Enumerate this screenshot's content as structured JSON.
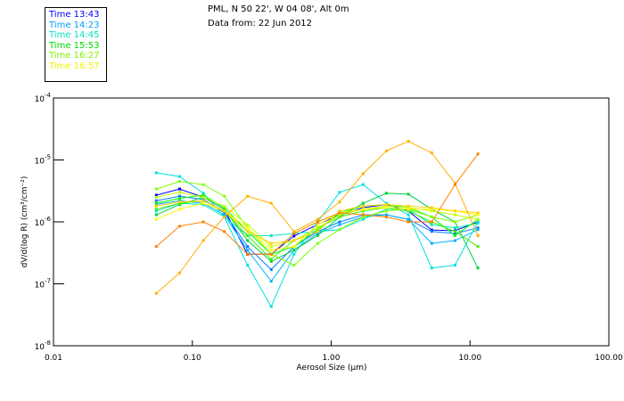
{
  "header": {
    "location": "PML, N 50 22', W 04 08', Alt 0m",
    "date": "Data from: 22 Jun 2012"
  },
  "chart_data": {
    "type": "line",
    "xlabel": "Aerosol Size (µm)",
    "ylabel": "dV/d(log R) (cm³/cm⁻²)",
    "xscale": "log",
    "yscale": "log",
    "xlim": [
      0.01,
      100
    ],
    "ylim": [
      1e-08,
      0.0001
    ],
    "xticks": [
      0.01,
      0.1,
      1,
      10,
      100
    ],
    "xtick_labels": [
      "0.01",
      "0.10",
      "1.00",
      "10.00",
      "100.00"
    ],
    "yticks": [
      1e-08,
      1e-07,
      1e-06,
      1e-05,
      0.0001
    ],
    "ytick_labels": [
      {
        "base": "10",
        "exp": "-8"
      },
      {
        "base": "10",
        "exp": "-7"
      },
      {
        "base": "10",
        "exp": "-6"
      },
      {
        "base": "10",
        "exp": "-5"
      },
      {
        "base": "10",
        "exp": "-4"
      }
    ],
    "legend_position": "top-left",
    "legend": [
      {
        "label": "Time 13:43",
        "color": "#0000ff"
      },
      {
        "label": "Time 14:23",
        "color": "#00a0ff"
      },
      {
        "label": "Time 14:45",
        "color": "#00e0c0"
      },
      {
        "label": "Time 15:53",
        "color": "#00d800"
      },
      {
        "label": "Time 16:27",
        "color": "#80f000"
      },
      {
        "label": "Time 16:57",
        "color": "#f0f000"
      }
    ],
    "x": [
      0.055,
      0.081,
      0.12,
      0.17,
      0.25,
      0.37,
      0.54,
      0.8,
      1.15,
      1.7,
      2.5,
      3.6,
      5.3,
      7.8,
      11.4
    ],
    "series": [
      {
        "color": "#0000ff",
        "values": [
          2.7e-06,
          3.4e-06,
          2.5e-06,
          1.6e-06,
          3e-07,
          3e-07,
          5.9e-07,
          9.1e-07,
          1.3e-06,
          1.7e-06,
          1.9e-06,
          1.5e-06,
          7.4e-07,
          7.2e-07,
          1e-06
        ]
      },
      {
        "color": "#0080ff",
        "values": [
          2.2e-06,
          2.6e-06,
          2.3e-06,
          1.4e-06,
          4e-07,
          1.7e-07,
          4e-07,
          7e-07,
          1e-06,
          1.3e-06,
          1.3e-06,
          1.1e-06,
          7e-07,
          6.5e-07,
          8e-07
        ]
      },
      {
        "color": "#00b0ff",
        "values": [
          1.9e-06,
          2.2e-06,
          2e-06,
          1.3e-06,
          3.5e-07,
          1.1e-07,
          3.5e-07,
          6.5e-07,
          9e-07,
          1.2e-06,
          1.3e-06,
          1.1e-06,
          4.5e-07,
          5e-07,
          7.5e-07
        ]
      },
      {
        "color": "#00e0e0",
        "values": [
          6.2e-06,
          5.4e-06,
          2.9e-06,
          1.2e-06,
          2e-07,
          4.3e-08,
          3e-07,
          1e-06,
          3e-06,
          4e-06,
          2e-06,
          1.3e-06,
          1.8e-07,
          2e-07,
          1e-06
        ]
      },
      {
        "color": "#00e8c0",
        "values": [
          1.5e-06,
          2e-06,
          1.9e-06,
          1.2e-06,
          6e-07,
          6e-07,
          6.5e-07,
          7e-07,
          7.5e-07,
          1.1e-06,
          1.6e-06,
          1.6e-06,
          9e-07,
          8e-07,
          9.5e-07
        ]
      },
      {
        "color": "#00d040",
        "values": [
          1.3e-06,
          1.9e-06,
          2.5e-06,
          1.6e-06,
          5e-07,
          2.3e-07,
          3.5e-07,
          6e-07,
          1.2e-06,
          2e-06,
          2.9e-06,
          2.8e-06,
          1.6e-06,
          1e-06,
          1.8e-07
        ]
      },
      {
        "color": "#00ff00",
        "values": [
          2e-06,
          2.4e-06,
          2.7e-06,
          1.7e-06,
          7e-07,
          3e-07,
          4e-07,
          7.5e-07,
          1.4e-06,
          1.8e-06,
          1.9e-06,
          1.7e-06,
          1.2e-06,
          6e-07,
          1.1e-06
        ]
      },
      {
        "color": "#40f000",
        "values": [
          1.6e-06,
          2e-06,
          2.2e-06,
          1.5e-06,
          6e-07,
          2.5e-07,
          5e-07,
          8e-07,
          1.2e-06,
          1.5e-06,
          1.7e-06,
          1.5e-06,
          1e-06,
          7e-07,
          4e-07
        ]
      },
      {
        "color": "#80ff00",
        "values": [
          3.4e-06,
          4.5e-06,
          4e-06,
          2.6e-06,
          8e-07,
          3e-07,
          2e-07,
          4.5e-07,
          7.5e-07,
          1.2e-06,
          1.5e-06,
          1.6e-06,
          1.2e-06,
          1e-06,
          1.3e-06
        ]
      },
      {
        "color": "#c0ff00",
        "values": [
          2.5e-06,
          3e-06,
          2.5e-06,
          1.8e-06,
          9e-07,
          4e-07,
          5e-07,
          8e-07,
          1.3e-06,
          1.6e-06,
          1.8e-06,
          1.7e-06,
          1.5e-06,
          1.3e-06,
          1.1e-06
        ]
      },
      {
        "color": "#ffff00",
        "values": [
          1.1e-06,
          1.6e-06,
          2e-06,
          1.5e-06,
          8e-07,
          3.5e-07,
          4e-07,
          9e-07,
          1.4e-06,
          1.6e-06,
          1.7e-06,
          1.6e-06,
          1.6e-06,
          1.5e-06,
          1.3e-06
        ]
      },
      {
        "color": "#ffd000",
        "values": [
          1.8e-06,
          2.1e-06,
          2.2e-06,
          1.5e-06,
          7e-07,
          4.5e-07,
          5e-07,
          7e-07,
          1.5e-06,
          1.8e-06,
          1.9e-06,
          1.8e-06,
          1.7e-06,
          1.5e-06,
          1.4e-06
        ]
      },
      {
        "color": "#ffb000",
        "values": [
          7e-08,
          1.5e-07,
          5e-07,
          1.2e-06,
          2.6e-06,
          2e-06,
          7e-07,
          1.1e-06,
          2.1e-06,
          6e-06,
          1.4e-05,
          2e-05,
          1.3e-05,
          4.2e-06,
          6e-07
        ]
      },
      {
        "color": "#ff8000",
        "values": [
          4e-07,
          8.5e-07,
          1e-06,
          7e-07,
          3e-07,
          3e-07,
          6.5e-07,
          1e-06,
          1.4e-06,
          1.3e-06,
          1.2e-06,
          1e-06,
          1e-06,
          4e-06,
          1.25e-05
        ]
      }
    ]
  }
}
